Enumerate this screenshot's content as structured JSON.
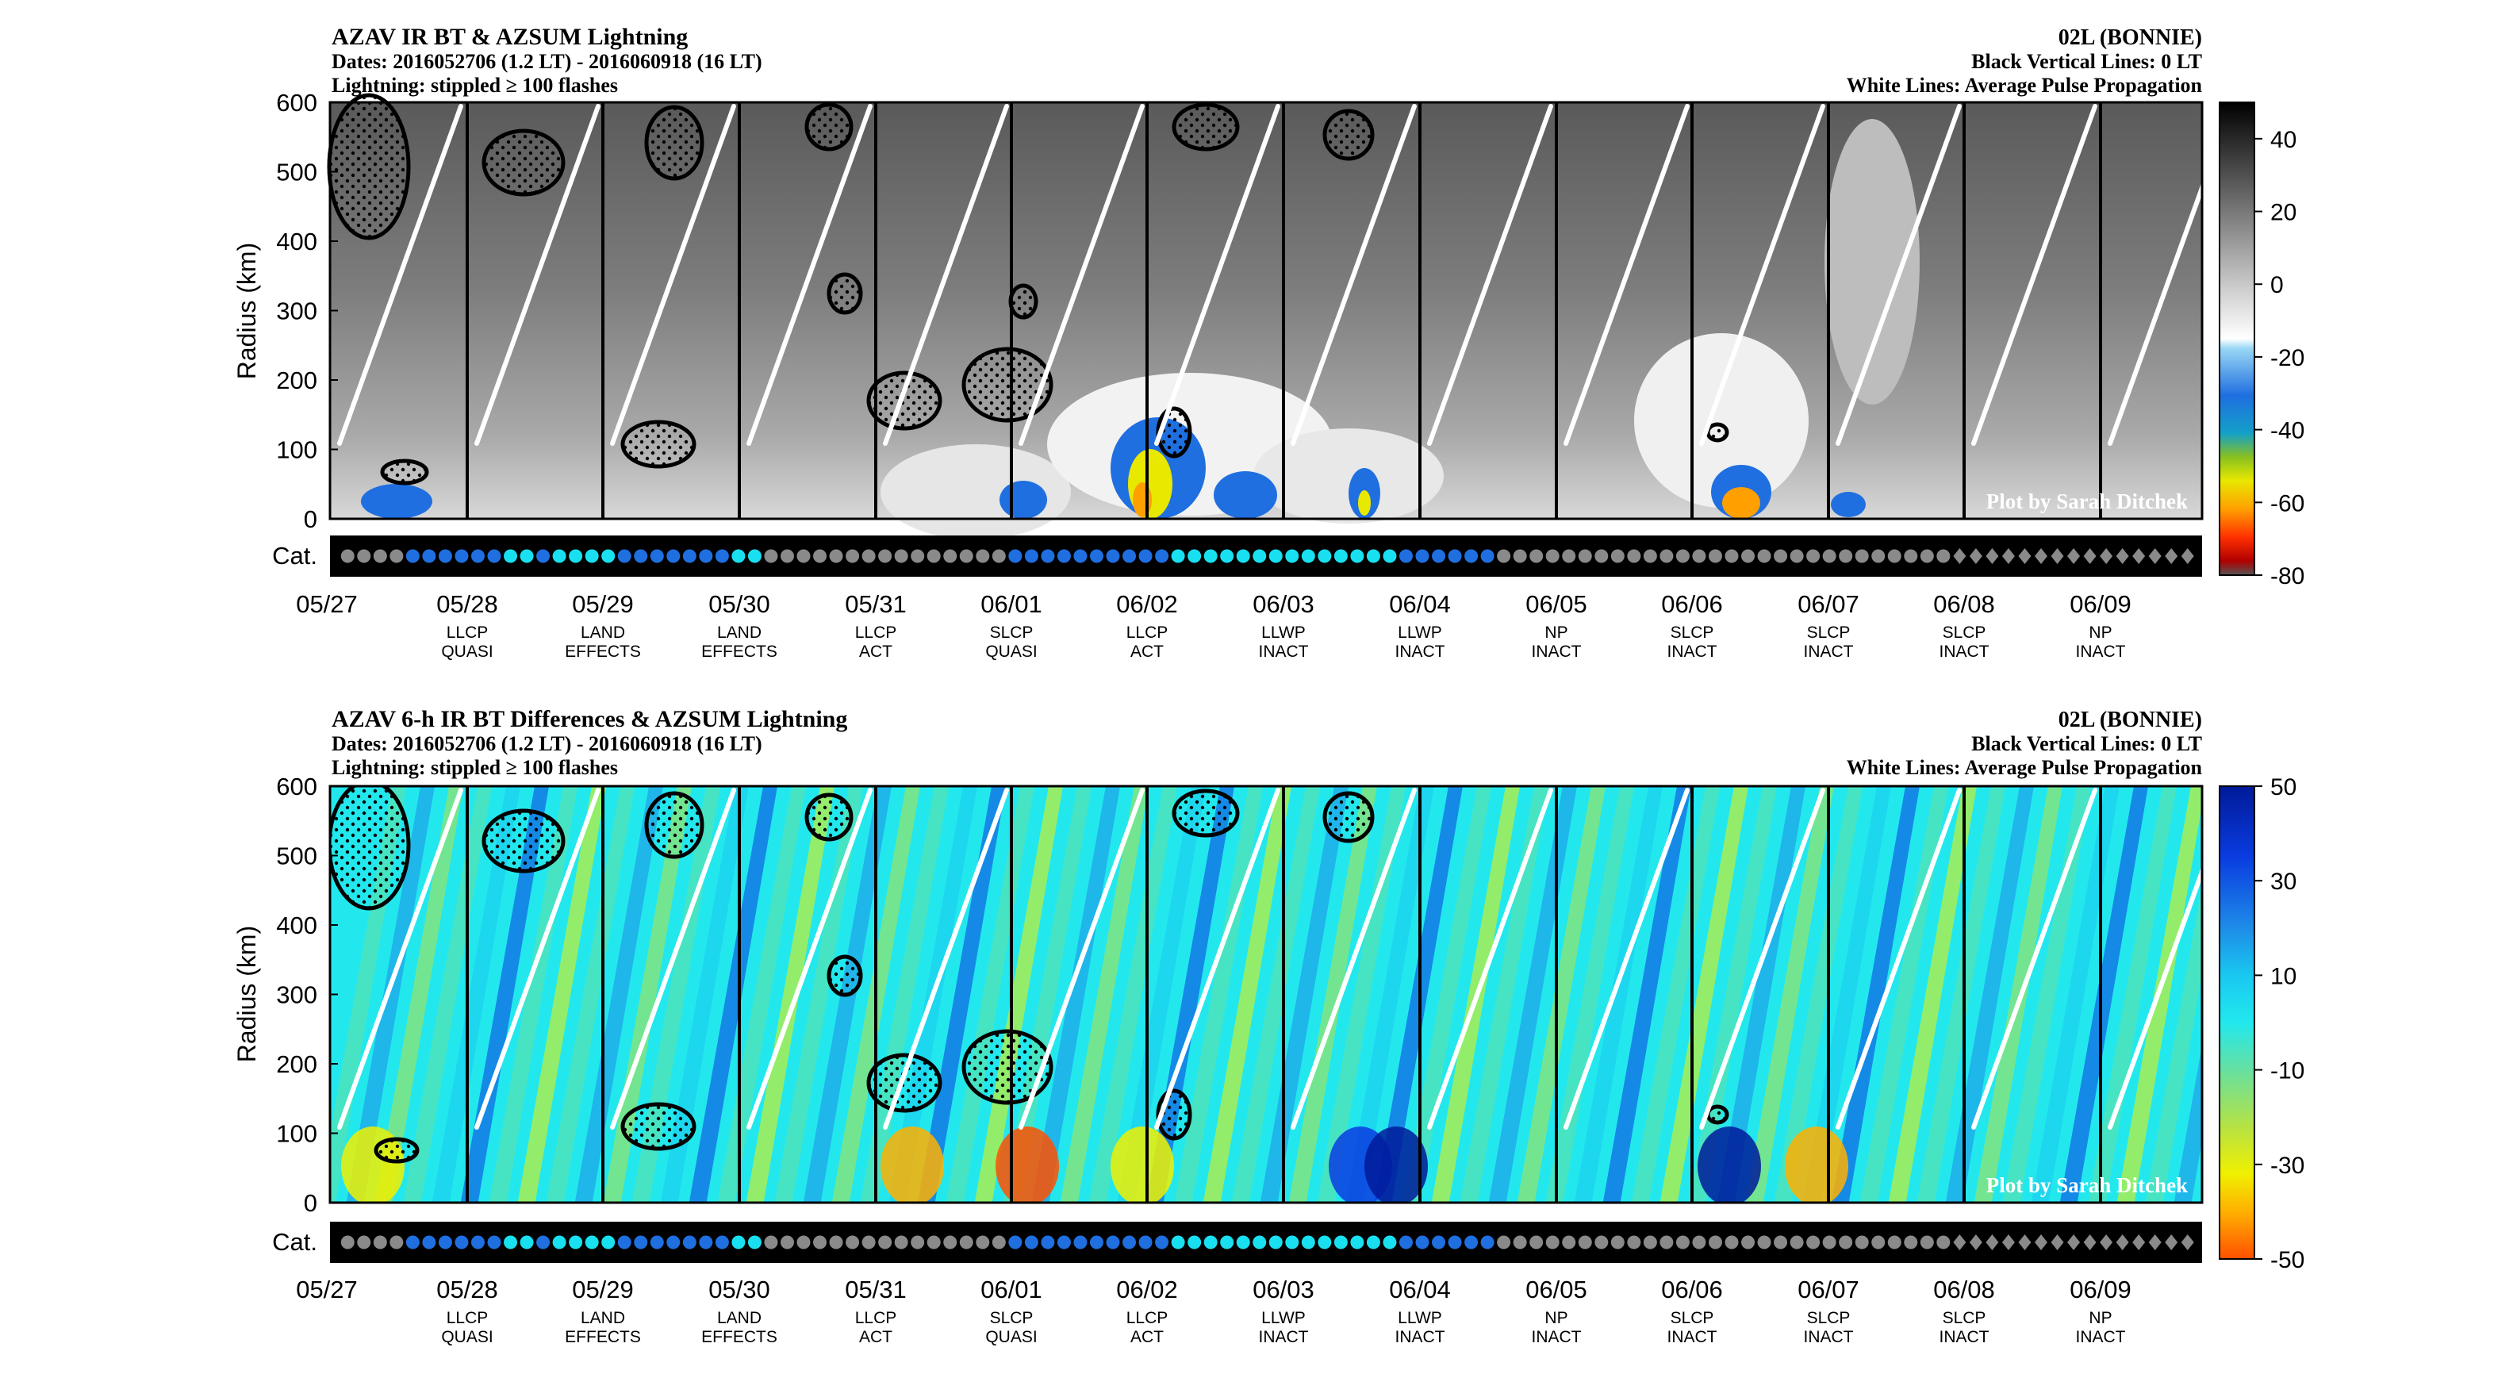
{
  "colors": {
    "dot_gray": "#8a8a8a",
    "dot_blue": "#1f6fe0",
    "dot_cyan": "#19e0f0",
    "frame": "#000000",
    "propagation_line": "#ffffff"
  },
  "chart_data": [
    {
      "type": "heatmap",
      "title": "AZAV IR BT & AZSUM Lightning",
      "subtitle_dates": "Dates: 2016052706 (1.2 LT) - 2016060918 (16 LT)",
      "subtitle_lightning": "Lightning: stippled ≥ 100 flashes",
      "storm": "02L (BONNIE)",
      "note_black_lines": "Black Vertical Lines: 0 LT",
      "note_white_lines": "White Lines: Average Pulse Propagation",
      "credit": "Plot by Sarah Ditchek",
      "ylabel": "Radius (km)",
      "ylim": [
        0,
        600
      ],
      "yticks": [
        "0",
        "100",
        "200",
        "300",
        "400",
        "500",
        "600"
      ],
      "category_label": "Cat.",
      "x_dates": [
        "05/27",
        "05/28",
        "05/29",
        "05/30",
        "05/31",
        "06/01",
        "06/02",
        "06/03",
        "06/04",
        "06/05",
        "06/06",
        "06/07",
        "06/08",
        "06/09"
      ],
      "day_labels": [
        [
          "LLCP",
          "QUASI"
        ],
        [
          "LAND",
          "EFFECTS"
        ],
        [
          "LAND",
          "EFFECTS"
        ],
        [
          "LLCP",
          "ACT"
        ],
        [
          "SLCP",
          "QUASI"
        ],
        [
          "LLCP",
          "ACT"
        ],
        [
          "LLWP",
          "INACT"
        ],
        [
          "LLWP",
          "INACT"
        ],
        [
          "NP",
          "INACT"
        ],
        [
          "SLCP",
          "INACT"
        ],
        [
          "SLCP",
          "INACT"
        ],
        [
          "SLCP",
          "INACT"
        ],
        [
          "NP",
          "INACT"
        ]
      ],
      "colorbar_ticks": [
        "40",
        "20",
        "0",
        "-20",
        "-40",
        "-60",
        "-80"
      ],
      "colorbar_range": [
        -80,
        50
      ]
    },
    {
      "type": "heatmap",
      "title": "AZAV 6-h IR BT Differences & AZSUM Lightning",
      "subtitle_dates": "Dates: 2016052706 (1.2 LT) - 2016060918 (16 LT)",
      "subtitle_lightning": "Lightning: stippled ≥ 100 flashes",
      "storm": "02L (BONNIE)",
      "note_black_lines": "Black Vertical Lines: 0 LT",
      "note_white_lines": "White Lines: Average Pulse Propagation",
      "credit": "Plot by Sarah Ditchek",
      "ylabel": "Radius (km)",
      "ylim": [
        0,
        600
      ],
      "yticks": [
        "0",
        "100",
        "200",
        "300",
        "400",
        "500",
        "600"
      ],
      "category_label": "Cat.",
      "x_dates": [
        "05/27",
        "05/28",
        "05/29",
        "05/30",
        "05/31",
        "06/01",
        "06/02",
        "06/03",
        "06/04",
        "06/05",
        "06/06",
        "06/07",
        "06/08",
        "06/09"
      ],
      "day_labels": [
        [
          "LLCP",
          "QUASI"
        ],
        [
          "LAND",
          "EFFECTS"
        ],
        [
          "LAND",
          "EFFECTS"
        ],
        [
          "LLCP",
          "ACT"
        ],
        [
          "SLCP",
          "QUASI"
        ],
        [
          "LLCP",
          "ACT"
        ],
        [
          "LLWP",
          "INACT"
        ],
        [
          "LLWP",
          "INACT"
        ],
        [
          "NP",
          "INACT"
        ],
        [
          "SLCP",
          "INACT"
        ],
        [
          "SLCP",
          "INACT"
        ],
        [
          "SLCP",
          "INACT"
        ],
        [
          "NP",
          "INACT"
        ]
      ],
      "colorbar_ticks": [
        "50",
        "30",
        "10",
        "-10",
        "-30",
        "-50"
      ],
      "colorbar_range": [
        -50,
        50
      ]
    }
  ],
  "category_dots": "ggggbbbbbbccbccccbbbbbbbccgggggggggggggggbbbbbbbbbbccccccccccccccbbbbbbggggggggggggggggggggggggggggddddddddddddddd"
}
